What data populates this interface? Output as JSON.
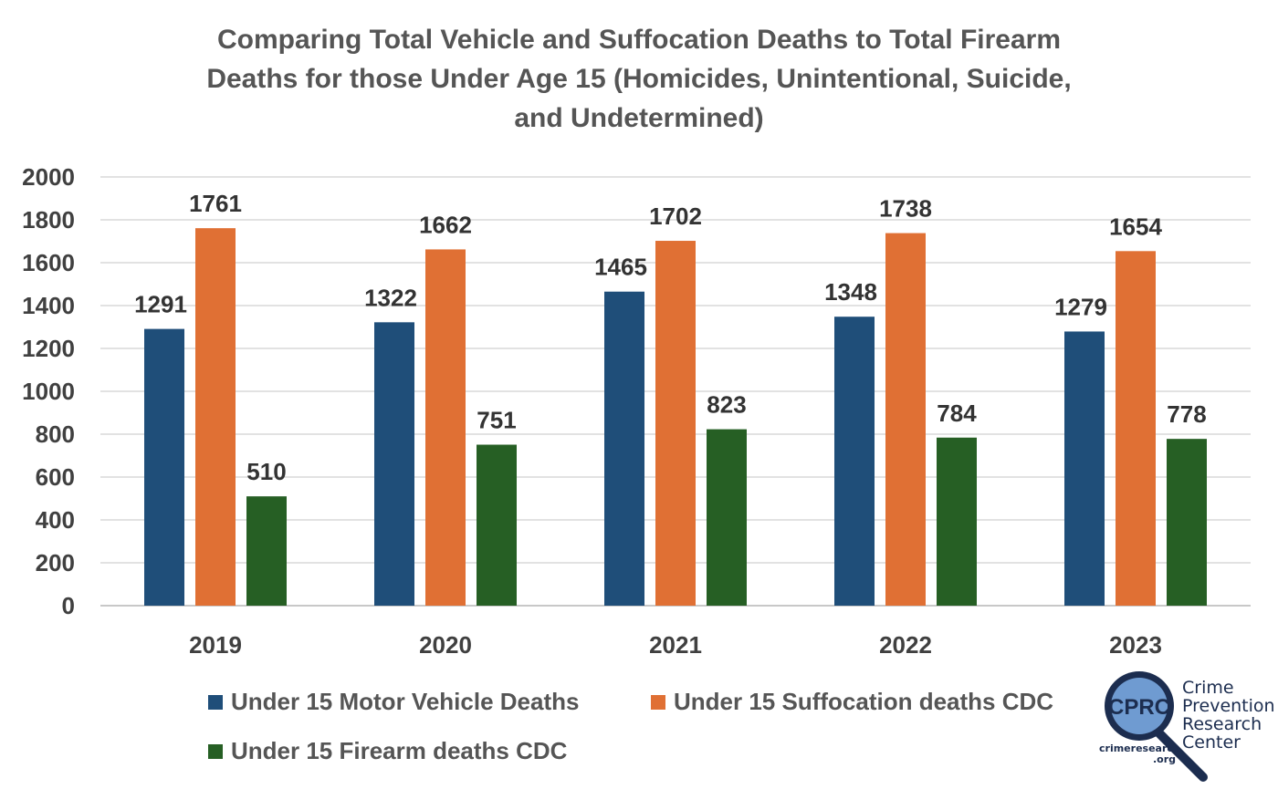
{
  "chart_data": {
    "type": "bar",
    "title": "Comparing Total Vehicle and Suffocation Deaths to Total Firearm Deaths for those Under Age 15 (Homicides, Unintentional, Suicide, and Undetermined)",
    "title_lines": [
      "Comparing Total Vehicle and Suffocation Deaths to Total Firearm",
      "Deaths for those Under Age 15 (Homicides, Unintentional, Suicide,",
      "and Undetermined)"
    ],
    "xlabel": "",
    "ylabel": "",
    "categories": [
      "2019",
      "2020",
      "2021",
      "2022",
      "2023"
    ],
    "series": [
      {
        "name": "Under 15 Motor Vehicle Deaths",
        "color": "#1f4e79",
        "values": [
          1291,
          1322,
          1465,
          1348,
          1279
        ]
      },
      {
        "name": "Under 15 Suffocation deaths CDC",
        "color": "#e07034",
        "values": [
          1761,
          1662,
          1702,
          1738,
          1654
        ]
      },
      {
        "name": "Under 15 Firearm deaths CDC",
        "color": "#265f24",
        "values": [
          510,
          751,
          823,
          784,
          778
        ]
      }
    ],
    "ylim": [
      0,
      2000
    ],
    "yticks": [
      0,
      200,
      400,
      600,
      800,
      1000,
      1200,
      1400,
      1600,
      1800,
      2000
    ],
    "grid": true,
    "data_labels": true,
    "legend_position": "bottom"
  },
  "logo": {
    "badge_text": "CPRC",
    "name_lines": [
      "Crime",
      "Prevention",
      "Research",
      "Center"
    ],
    "url_lines": [
      "crimeresearch",
      ".org"
    ]
  }
}
